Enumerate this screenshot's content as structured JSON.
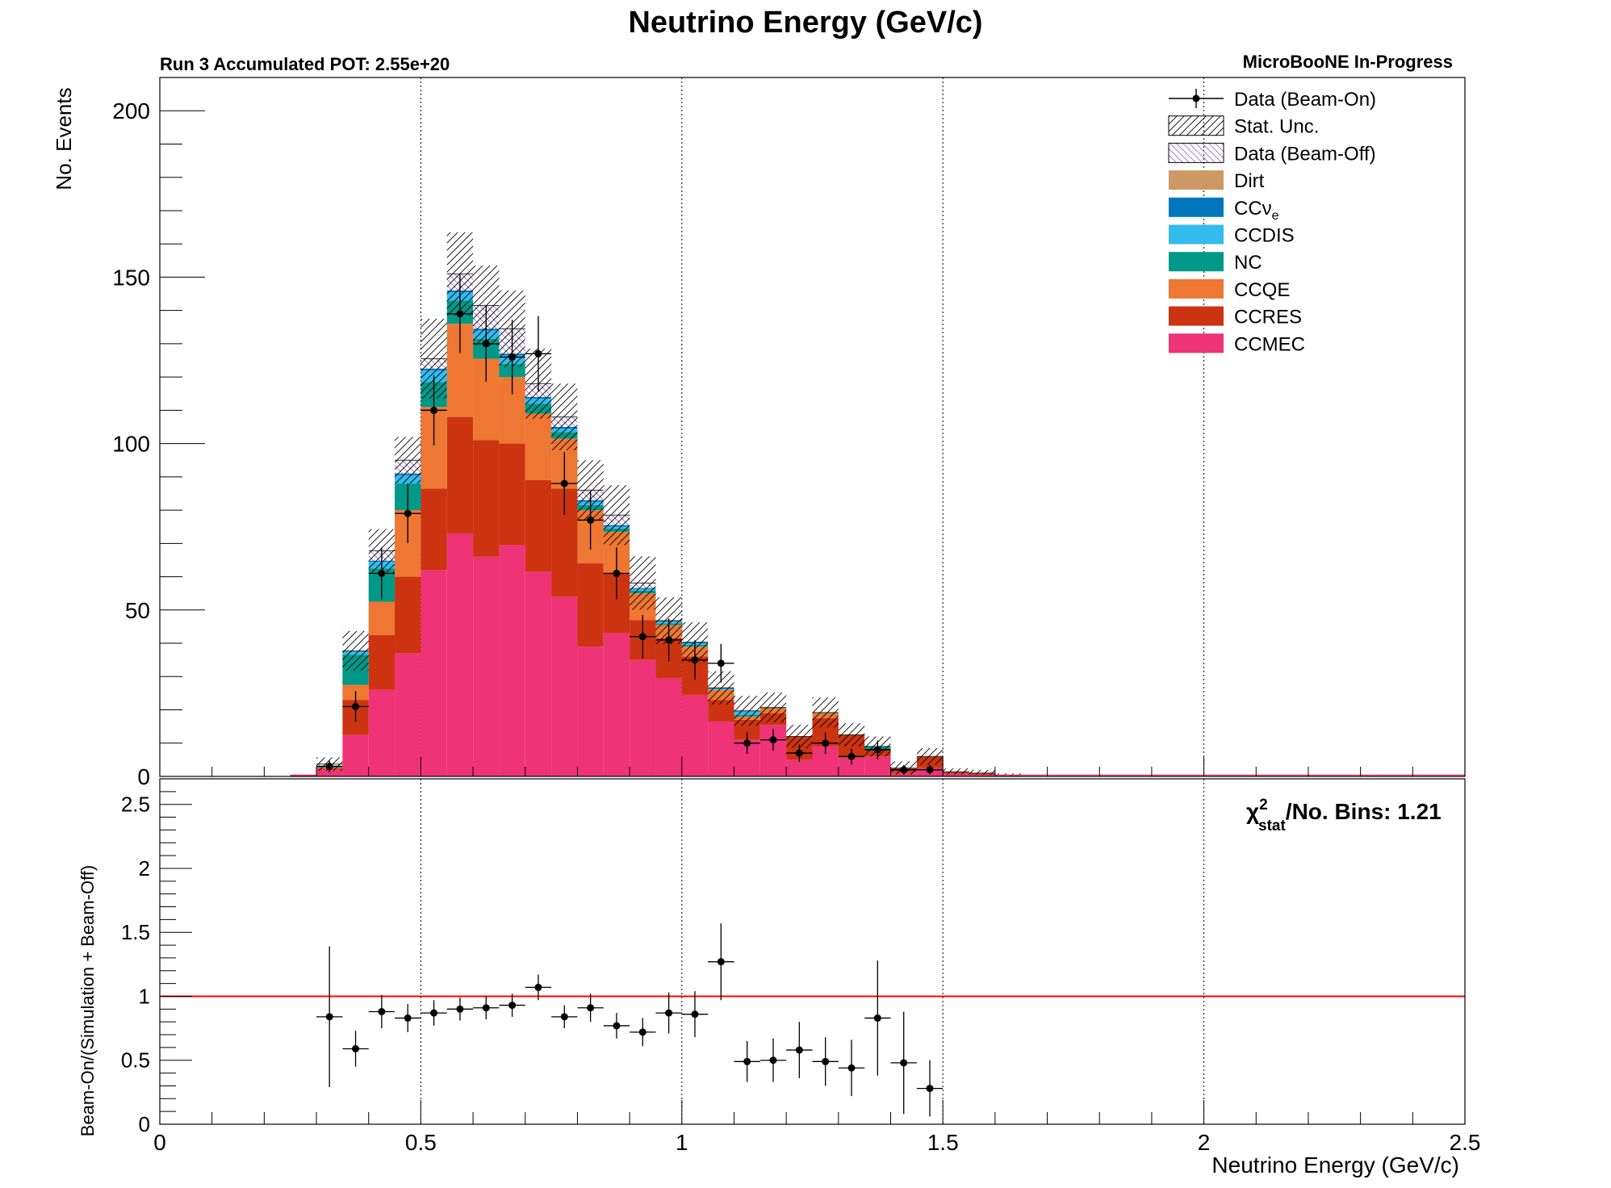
{
  "chart_data": [
    {
      "type": "bar",
      "stacked": true,
      "title": "Neutrino Energy (GeV/c)",
      "subtitle_left": "Run 3 Accumulated POT: 2.55e+20",
      "subtitle_right": "MicroBooNE In-Progress",
      "xlabel": "Neutrino Energy (GeV/c)",
      "ylabel": "No. Events",
      "xlim": [
        0,
        2.5
      ],
      "ylim": [
        0,
        210
      ],
      "yticks": [
        0,
        50,
        100,
        150,
        200
      ],
      "grid_x": [
        0.5,
        1,
        1.5,
        2
      ],
      "legend_position": "top-right",
      "bin_width": 0.05,
      "x": [
        0.275,
        0.325,
        0.375,
        0.425,
        0.475,
        0.525,
        0.575,
        0.625,
        0.675,
        0.725,
        0.775,
        0.825,
        0.875,
        0.925,
        0.975,
        1.025,
        1.075,
        1.125,
        1.175,
        1.225,
        1.275,
        1.325,
        1.375,
        1.425,
        1.475,
        1.525,
        1.575,
        1.625
      ],
      "series": [
        {
          "name": "CCMEC",
          "color": "#ee3377",
          "values": [
            0,
            2,
            12.5,
            26,
            37,
            62,
            73,
            66,
            69.5,
            61.5,
            54,
            39,
            43,
            35,
            29.5,
            24.5,
            16.5,
            11,
            15.5,
            5,
            9,
            5.5,
            6,
            1,
            2.5,
            0.8,
            0.5,
            0.2
          ]
        },
        {
          "name": "CCRES",
          "color": "#cc3311",
          "values": [
            0.3,
            0.4,
            10.5,
            16.5,
            23,
            24.5,
            35,
            35,
            30.5,
            27.5,
            32.5,
            25,
            18,
            12,
            12,
            11.5,
            6.5,
            6,
            3.5,
            7,
            8.5,
            7,
            2,
            1.5,
            3.5,
            0.6,
            0.5,
            0.2
          ]
        },
        {
          "name": "CCQE",
          "color": "#ee7733",
          "values": [
            0,
            0.3,
            4.5,
            10,
            20,
            24.5,
            28,
            24.5,
            20,
            20,
            15,
            16,
            12.5,
            8,
            4,
            3,
            3,
            1,
            1.5,
            0,
            1.5,
            0,
            0,
            0,
            0,
            0,
            0,
            0
          ]
        },
        {
          "name": "NC",
          "color": "#009988",
          "values": [
            0,
            0.5,
            9,
            10,
            8,
            7.5,
            7,
            6,
            4,
            3,
            2,
            1.5,
            1,
            0.8,
            0.5,
            0.5,
            0,
            0.5,
            0,
            0,
            0,
            0,
            1,
            0,
            0,
            0,
            0,
            0
          ]
        },
        {
          "name": "CCDIS",
          "color": "#33bbee",
          "values": [
            0,
            0,
            1,
            2,
            2.5,
            3.5,
            2.5,
            2.5,
            2.5,
            1.5,
            1,
            1,
            0.5,
            0.5,
            0.5,
            0.5,
            0.3,
            1,
            0,
            0,
            0,
            0,
            0,
            0,
            0,
            0,
            0,
            0
          ]
        },
        {
          "name": "CCνe",
          "color": "#0077bb",
          "values": [
            0,
            0,
            0.2,
            0.3,
            0.5,
            0.5,
            0.5,
            0.5,
            0.5,
            0.5,
            0.5,
            0.5,
            0.5,
            0.3,
            0.3,
            0.3,
            0.3,
            0.2,
            0.2,
            0,
            0.2,
            0,
            0,
            0,
            0,
            0,
            0,
            0
          ]
        },
        {
          "name": "Dirt",
          "color": "#cc9966",
          "values": [
            0,
            0,
            0,
            0,
            0,
            0,
            0,
            0,
            0,
            0,
            0,
            0,
            0,
            0,
            0,
            0,
            0,
            0,
            0,
            0,
            0,
            0,
            0,
            0,
            0,
            0,
            0,
            0
          ]
        },
        {
          "name": "Data (Beam-Off)",
          "color": "#9966cc",
          "values": [
            0,
            0.5,
            0,
            3,
            4,
            3,
            5,
            7,
            7.5,
            4,
            3,
            3,
            3,
            1.5,
            0,
            0,
            0,
            0,
            0,
            0,
            0,
            0,
            0,
            0,
            0,
            0,
            0,
            0
          ]
        }
      ],
      "stat_unc_halfwidth": [
        0,
        2,
        6,
        6.5,
        7,
        12,
        12.5,
        12,
        11.5,
        10.5,
        10,
        9,
        9,
        8,
        7,
        6,
        5,
        4.5,
        4.5,
        3.5,
        4.5,
        3.5,
        3,
        2,
        2.5,
        1,
        1,
        0.5
      ],
      "data_points": {
        "name": "Data (Beam-On)",
        "x": [
          0.325,
          0.375,
          0.425,
          0.475,
          0.525,
          0.575,
          0.625,
          0.675,
          0.725,
          0.775,
          0.825,
          0.875,
          0.925,
          0.975,
          1.025,
          1.075,
          1.125,
          1.175,
          1.225,
          1.275,
          1.325,
          1.375,
          1.425,
          1.475
        ],
        "y": [
          3,
          21,
          61,
          79,
          110,
          139,
          130,
          126,
          127,
          88,
          77,
          61,
          42,
          41,
          35,
          34,
          10,
          11,
          7,
          10,
          6,
          8,
          2,
          2
        ],
        "yerr": [
          1.7,
          4.6,
          7.8,
          8.9,
          10.5,
          11.8,
          11.4,
          11.2,
          11.3,
          9.4,
          8.8,
          7.8,
          6.5,
          6.4,
          5.9,
          5.8,
          3.2,
          3.3,
          2.6,
          3.2,
          2.4,
          2.8,
          1.4,
          1.4
        ]
      },
      "legend": [
        "Data (Beam-On)",
        "Stat. Unc.",
        "Data (Beam-Off)",
        "Dirt",
        "CCνe",
        "CCDIS",
        "NC",
        "CCQE",
        "CCRES",
        "CCMEC"
      ]
    },
    {
      "type": "scatter",
      "xlabel": "Neutrino Energy (GeV/c)",
      "ylabel": "Beam-On/(Simulation + Beam-Off)",
      "xlim": [
        0,
        2.5
      ],
      "ylim": [
        0,
        2.7
      ],
      "yticks": [
        0,
        0.5,
        1,
        1.5,
        2,
        2.5
      ],
      "xticks": [
        0,
        0.5,
        1,
        1.5,
        2,
        2.5
      ],
      "reference_line": {
        "y": 1,
        "color": "#ff0000"
      },
      "annotation": "/No. Bins: 1.21",
      "chi_symbol": "χ",
      "chi_sup": "2",
      "chi_sub": "stat",
      "x": [
        0.325,
        0.375,
        0.425,
        0.475,
        0.525,
        0.575,
        0.625,
        0.675,
        0.725,
        0.775,
        0.825,
        0.875,
        0.925,
        0.975,
        1.025,
        1.075,
        1.125,
        1.175,
        1.225,
        1.275,
        1.325,
        1.375,
        1.425,
        1.475
      ],
      "y": [
        0.84,
        0.59,
        0.88,
        0.83,
        0.87,
        0.9,
        0.91,
        0.93,
        1.07,
        0.84,
        0.91,
        0.77,
        0.72,
        0.87,
        0.86,
        1.27,
        0.49,
        0.5,
        0.58,
        0.49,
        0.44,
        0.83,
        0.48,
        0.28
      ],
      "yerr": [
        0.55,
        0.14,
        0.13,
        0.11,
        0.1,
        0.09,
        0.09,
        0.09,
        0.1,
        0.09,
        0.11,
        0.1,
        0.11,
        0.16,
        0.18,
        0.3,
        0.16,
        0.17,
        0.22,
        0.19,
        0.22,
        0.45,
        0.4,
        0.22
      ]
    }
  ]
}
